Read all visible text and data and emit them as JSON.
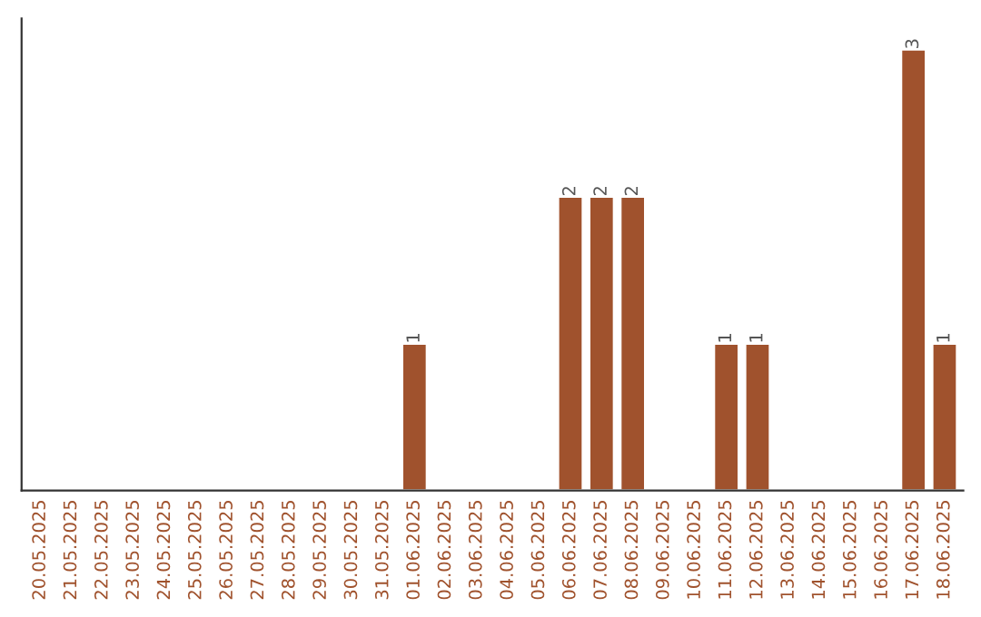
{
  "chart_data": {
    "type": "bar",
    "categories": [
      "20.05.2025",
      "21.05.2025",
      "22.05.2025",
      "23.05.2025",
      "24.05.2025",
      "25.05.2025",
      "26.05.2025",
      "27.05.2025",
      "28.05.2025",
      "29.05.2025",
      "30.05.2025",
      "31.05.2025",
      "01.06.2025",
      "02.06.2025",
      "03.06.2025",
      "04.06.2025",
      "05.06.2025",
      "06.06.2025",
      "07.06.2025",
      "08.06.2025",
      "09.06.2025",
      "10.06.2025",
      "11.06.2025",
      "12.06.2025",
      "13.06.2025",
      "14.06.2025",
      "15.06.2025",
      "16.06.2025",
      "17.06.2025",
      "18.06.2025"
    ],
    "values": [
      null,
      null,
      null,
      null,
      null,
      null,
      null,
      null,
      null,
      null,
      null,
      null,
      1,
      null,
      null,
      null,
      null,
      2,
      2,
      2,
      null,
      null,
      1,
      1,
      null,
      null,
      null,
      null,
      3,
      1
    ],
    "data_labels": true,
    "color": "#a0522d",
    "tick_labels": "x",
    "grid": false,
    "legend": false
  }
}
